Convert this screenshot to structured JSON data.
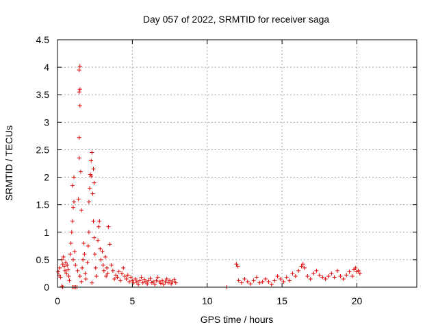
{
  "chart_data": {
    "type": "scatter",
    "title": "Day 057 of 2022, SRMTID for receiver saga",
    "xlabel": "GPS time / hours",
    "ylabel": "SRMTID / TECUs",
    "xlim": [
      0,
      24
    ],
    "ylim": [
      0,
      4.5
    ],
    "xticks": [
      0,
      5,
      10,
      15,
      20
    ],
    "yticks": [
      0,
      0.5,
      1,
      1.5,
      2,
      2.5,
      3,
      3.5,
      4,
      4.5
    ],
    "xtick_labels": [
      "0",
      "5",
      "10",
      "15",
      "20"
    ],
    "ytick_labels": [
      "0",
      "0.5",
      "1",
      "1.5",
      "2",
      "2.5",
      "3",
      "3.5",
      "4",
      "4.5"
    ],
    "grid": true,
    "marker": "+",
    "color": "#e00000",
    "series": [
      {
        "name": "SRMTID",
        "points": [
          [
            0.05,
            0.28
          ],
          [
            0.1,
            0.22
          ],
          [
            0.15,
            0.35
          ],
          [
            0.2,
            0.18
          ],
          [
            0.3,
            0.5
          ],
          [
            0.35,
            0.42
          ],
          [
            0.4,
            0.55
          ],
          [
            0.45,
            0.38
          ],
          [
            0.5,
            0.3
          ],
          [
            0.55,
            0.45
          ],
          [
            0.6,
            0.25
          ],
          [
            0.65,
            0.4
          ],
          [
            0.7,
            0.32
          ],
          [
            0.75,
            0.2
          ],
          [
            0.8,
            0.12
          ],
          [
            0.3,
            0.02
          ],
          [
            0.35,
            0.0
          ],
          [
            0.85,
            0.6
          ],
          [
            0.9,
            0.8
          ],
          [
            0.95,
            1.0
          ],
          [
            1.0,
            1.2
          ],
          [
            1.05,
            1.45
          ],
          [
            1.1,
            1.55
          ],
          [
            1.0,
            1.85
          ],
          [
            1.1,
            2.0
          ],
          [
            1.05,
            0.5
          ],
          [
            1.15,
            0.65
          ],
          [
            1.2,
            0.4
          ],
          [
            1.0,
            0.0
          ],
          [
            1.1,
            0.0
          ],
          [
            1.2,
            0.0
          ],
          [
            1.3,
            0.0
          ],
          [
            1.35,
            0.3
          ],
          [
            1.4,
            1.6
          ],
          [
            1.45,
            2.35
          ],
          [
            1.45,
            2.72
          ],
          [
            1.5,
            3.3
          ],
          [
            1.45,
            3.55
          ],
          [
            1.5,
            3.6
          ],
          [
            1.45,
            3.95
          ],
          [
            1.5,
            4.02
          ],
          [
            1.55,
            2.1
          ],
          [
            1.6,
            1.4
          ],
          [
            1.5,
            0.2
          ],
          [
            1.6,
            0.1
          ],
          [
            1.65,
            0.35
          ],
          [
            1.7,
            0.5
          ],
          [
            1.75,
            0.8
          ],
          [
            1.8,
            0.6
          ],
          [
            1.85,
            0.25
          ],
          [
            1.9,
            0.15
          ],
          [
            2.0,
            0.45
          ],
          [
            2.05,
            0.75
          ],
          [
            2.1,
            1.0
          ],
          [
            2.1,
            1.55
          ],
          [
            2.15,
            1.8
          ],
          [
            2.2,
            2.05
          ],
          [
            2.25,
            2.3
          ],
          [
            2.3,
            2.45
          ],
          [
            2.25,
            2.02
          ],
          [
            2.35,
            1.7
          ],
          [
            2.4,
            1.2
          ],
          [
            2.45,
            0.9
          ],
          [
            2.5,
            0.6
          ],
          [
            2.55,
            0.35
          ],
          [
            2.6,
            0.2
          ],
          [
            2.4,
            2.15
          ],
          [
            2.45,
            1.9
          ],
          [
            2.3,
            0.08
          ],
          [
            2.7,
            0.85
          ],
          [
            2.75,
            1.1
          ],
          [
            2.8,
            1.2
          ],
          [
            2.85,
            0.7
          ],
          [
            2.9,
            0.5
          ],
          [
            3.0,
            0.65
          ],
          [
            3.05,
            0.4
          ],
          [
            3.1,
            0.3
          ],
          [
            3.2,
            0.55
          ],
          [
            3.25,
            0.2
          ],
          [
            3.3,
            0.35
          ],
          [
            3.35,
            0.25
          ],
          [
            3.4,
            1.1
          ],
          [
            3.5,
            0.78
          ],
          [
            3.6,
            0.4
          ],
          [
            3.7,
            0.3
          ],
          [
            3.8,
            0.15
          ],
          [
            3.9,
            0.22
          ],
          [
            4.0,
            0.18
          ],
          [
            4.1,
            0.28
          ],
          [
            4.2,
            0.12
          ],
          [
            4.3,
            0.25
          ],
          [
            4.4,
            0.35
          ],
          [
            4.5,
            0.2
          ],
          [
            4.6,
            0.15
          ],
          [
            4.7,
            0.22
          ],
          [
            4.8,
            0.1
          ],
          [
            4.9,
            0.18
          ],
          [
            5.0,
            0.12
          ],
          [
            5.1,
            0.08
          ],
          [
            5.2,
            0.15
          ],
          [
            5.3,
            0.1
          ],
          [
            5.4,
            0.05
          ],
          [
            5.5,
            0.12
          ],
          [
            5.6,
            0.18
          ],
          [
            5.7,
            0.08
          ],
          [
            5.8,
            0.14
          ],
          [
            5.9,
            0.1
          ],
          [
            6.0,
            0.06
          ],
          [
            6.1,
            0.12
          ],
          [
            6.2,
            0.16
          ],
          [
            6.3,
            0.08
          ],
          [
            6.4,
            0.1
          ],
          [
            6.5,
            0.05
          ],
          [
            6.6,
            0.12
          ],
          [
            6.7,
            0.18
          ],
          [
            6.8,
            0.1
          ],
          [
            6.9,
            0.07
          ],
          [
            7.0,
            0.12
          ],
          [
            7.1,
            0.05
          ],
          [
            7.2,
            0.1
          ],
          [
            7.3,
            0.15
          ],
          [
            7.4,
            0.08
          ],
          [
            7.5,
            0.12
          ],
          [
            7.6,
            0.06
          ],
          [
            7.7,
            0.1
          ],
          [
            7.8,
            0.14
          ],
          [
            7.9,
            0.08
          ],
          [
            11.3,
            0.0
          ],
          [
            11.95,
            0.42
          ],
          [
            12.05,
            0.38
          ],
          [
            12.1,
            0.12
          ],
          [
            12.3,
            0.08
          ],
          [
            12.5,
            0.15
          ],
          [
            12.7,
            0.1
          ],
          [
            12.9,
            0.06
          ],
          [
            13.1,
            0.12
          ],
          [
            13.3,
            0.18
          ],
          [
            13.5,
            0.08
          ],
          [
            13.7,
            0.1
          ],
          [
            13.9,
            0.15
          ],
          [
            14.1,
            0.1
          ],
          [
            14.3,
            0.05
          ],
          [
            14.5,
            0.12
          ],
          [
            14.7,
            0.2
          ],
          [
            14.9,
            0.15
          ],
          [
            15.1,
            0.1
          ],
          [
            15.3,
            0.18
          ],
          [
            15.5,
            0.12
          ],
          [
            15.7,
            0.25
          ],
          [
            15.9,
            0.2
          ],
          [
            16.1,
            0.3
          ],
          [
            16.3,
            0.38
          ],
          [
            16.4,
            0.42
          ],
          [
            16.5,
            0.35
          ],
          [
            16.7,
            0.2
          ],
          [
            16.9,
            0.15
          ],
          [
            17.1,
            0.25
          ],
          [
            17.3,
            0.3
          ],
          [
            17.5,
            0.22
          ],
          [
            17.7,
            0.18
          ],
          [
            17.9,
            0.15
          ],
          [
            18.1,
            0.2
          ],
          [
            18.3,
            0.25
          ],
          [
            18.5,
            0.18
          ],
          [
            18.7,
            0.3
          ],
          [
            18.9,
            0.2
          ],
          [
            19.1,
            0.15
          ],
          [
            19.3,
            0.22
          ],
          [
            19.5,
            0.28
          ],
          [
            19.7,
            0.2
          ],
          [
            19.8,
            0.32
          ],
          [
            19.9,
            0.35
          ],
          [
            20.0,
            0.28
          ],
          [
            20.1,
            0.3
          ],
          [
            20.2,
            0.25
          ]
        ]
      }
    ]
  }
}
